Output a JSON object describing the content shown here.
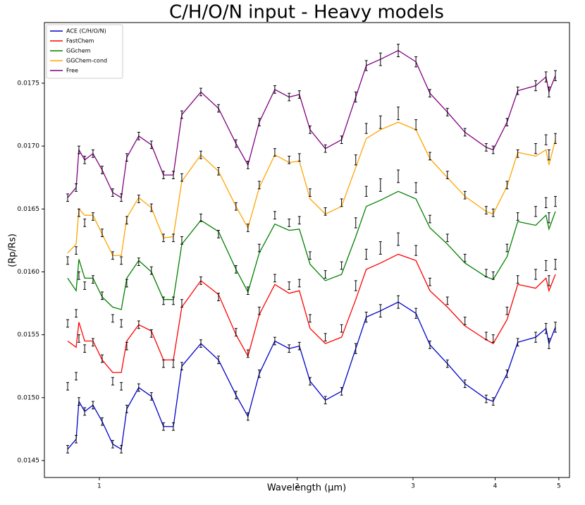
{
  "chart_data": {
    "type": "line",
    "title": "C/H/O/N input - Heavy models",
    "x_label": "Wavelength (μm)",
    "y_label": "(Rp/Rs)",
    "xscale": "log",
    "xlim": [
      0.825,
      5.19
    ],
    "ylim": [
      0.014365,
      0.017982
    ],
    "xticks": [
      1,
      2,
      3,
      4,
      5
    ],
    "yticks": [
      0.0145,
      {
        "value": 0.015,
        "label": "0.0150"
      },
      0.0155,
      {
        "value": 0.016,
        "label": "0.0160"
      },
      0.0165,
      {
        "value": 0.017,
        "label": "0.0170"
      },
      0.0175
    ],
    "legend": "upper left",
    "error_color": "#000000",
    "x": [
      0.895,
      0.922,
      0.931,
      0.95,
      0.978,
      1.01,
      1.048,
      1.08,
      1.101,
      1.148,
      1.2,
      1.252,
      1.296,
      1.335,
      1.427,
      1.518,
      1.614,
      1.683,
      1.751,
      1.849,
      1.944,
      2.015,
      2.092,
      2.207,
      2.336,
      2.455,
      2.547,
      2.677,
      2.849,
      3.031,
      3.183,
      3.384,
      3.599,
      3.877,
      3.973,
      4.17,
      4.33,
      4.61,
      4.78,
      4.83,
      4.94
    ],
    "obs_errors": [
      3e-05,
      3e-05,
      3e-05,
      3e-05,
      3e-05,
      3e-05,
      3e-05,
      3e-05,
      3e-05,
      3e-05,
      3e-05,
      3e-05,
      3e-05,
      3e-05,
      3e-05,
      3e-05,
      3e-05,
      3e-05,
      3e-05,
      3e-05,
      3e-05,
      3e-05,
      3e-05,
      3e-05,
      3e-05,
      4e-05,
      4e-05,
      5e-05,
      5e-05,
      4e-05,
      3e-05,
      3e-05,
      3e-05,
      3e-05,
      3e-05,
      3e-05,
      3e-05,
      4e-05,
      4e-05,
      4e-05,
      4e-05
    ],
    "series": [
      {
        "name": "ACE (C/H/O/N)",
        "color": "#0000cc",
        "values": [
          0.01459,
          0.01467,
          0.01497,
          0.01489,
          0.01494,
          0.01481,
          0.01463,
          0.01459,
          0.01491,
          0.01508,
          0.01501,
          0.01477,
          0.01477,
          0.01525,
          0.01543,
          0.0153,
          0.01502,
          0.01485,
          0.01519,
          0.01545,
          0.01539,
          0.01541,
          0.01513,
          0.01498,
          0.01505,
          0.01539,
          0.01564,
          0.01569,
          0.01576,
          0.01567,
          0.01542,
          0.01527,
          0.01511,
          0.01499,
          0.01497,
          0.01519,
          0.01544,
          0.01548,
          0.01555,
          0.01543,
          0.01556
        ],
        "obs": [
          0.01459,
          0.01467,
          0.01497,
          0.01489,
          0.01494,
          0.01481,
          0.01463,
          0.01459,
          0.01491,
          0.01508,
          0.01501,
          0.01477,
          0.01477,
          0.01525,
          0.01543,
          0.0153,
          0.01502,
          0.01485,
          0.01519,
          0.01545,
          0.01539,
          0.01541,
          0.01513,
          0.01498,
          0.01505,
          0.01539,
          0.01564,
          0.01569,
          0.01576,
          0.01567,
          0.01542,
          0.01527,
          0.01511,
          0.01499,
          0.01497,
          0.01519,
          0.01544,
          0.01548,
          0.01555,
          0.01543,
          0.01556
        ]
      },
      {
        "name": "FastChem",
        "color": "#ff0000",
        "values": [
          0.01545,
          0.0154,
          0.0156,
          0.01545,
          0.01545,
          0.0153,
          0.0152,
          0.0152,
          0.01545,
          0.01558,
          0.01553,
          0.0153,
          0.0153,
          0.01572,
          0.01593,
          0.01582,
          0.0155,
          0.01533,
          0.01566,
          0.0159,
          0.01583,
          0.01585,
          0.01555,
          0.01543,
          0.01548,
          0.01578,
          0.01602,
          0.01607,
          0.01614,
          0.01609,
          0.01585,
          0.01572,
          0.01557,
          0.01546,
          0.01543,
          0.01562,
          0.0159,
          0.01587,
          0.01595,
          0.01585,
          0.01598
        ],
        "obs": [
          0.01509,
          0.01517,
          0.01547,
          0.01539,
          0.01544,
          0.01531,
          0.01513,
          0.01509,
          0.01541,
          0.01558,
          0.01551,
          0.01527,
          0.01527,
          0.01575,
          0.01593,
          0.0158,
          0.01552,
          0.01535,
          0.01569,
          0.01595,
          0.01589,
          0.01591,
          0.01563,
          0.01548,
          0.01555,
          0.01589,
          0.01614,
          0.01619,
          0.01626,
          0.01617,
          0.01592,
          0.01577,
          0.01561,
          0.01549,
          0.01547,
          0.01569,
          0.01594,
          0.01598,
          0.01605,
          0.01593,
          0.01606
        ]
      },
      {
        "name": "GGchem",
        "color": "#008000",
        "values": [
          0.01595,
          0.01585,
          0.0161,
          0.01595,
          0.01595,
          0.0158,
          0.01572,
          0.0157,
          0.01595,
          0.01609,
          0.016,
          0.01578,
          0.01578,
          0.01622,
          0.01641,
          0.01632,
          0.01602,
          0.01584,
          0.01615,
          0.01638,
          0.01633,
          0.01634,
          0.01606,
          0.01593,
          0.01598,
          0.01628,
          0.01652,
          0.01657,
          0.01664,
          0.01658,
          0.01635,
          0.01622,
          0.01607,
          0.01596,
          0.01594,
          0.01612,
          0.0164,
          0.01637,
          0.01645,
          0.01634,
          0.01648
        ],
        "obs": [
          0.01559,
          0.01567,
          0.01597,
          0.01589,
          0.01594,
          0.01581,
          0.01563,
          0.01559,
          0.01591,
          0.01608,
          0.01601,
          0.01577,
          0.01577,
          0.01625,
          0.01643,
          0.0163,
          0.01602,
          0.01585,
          0.01619,
          0.01645,
          0.01639,
          0.01641,
          0.01613,
          0.01598,
          0.01605,
          0.01639,
          0.01664,
          0.01669,
          0.01676,
          0.01667,
          0.01642,
          0.01627,
          0.01611,
          0.01599,
          0.01597,
          0.01619,
          0.01644,
          0.01648,
          0.01655,
          0.01643,
          0.01656
        ]
      },
      {
        "name": "GGChem-cond",
        "color": "#ffa500",
        "values": [
          0.01615,
          0.01622,
          0.0165,
          0.01645,
          0.01645,
          0.0163,
          0.01613,
          0.01613,
          0.01643,
          0.01659,
          0.01651,
          0.01627,
          0.01628,
          0.01672,
          0.01693,
          0.0168,
          0.01652,
          0.01635,
          0.01667,
          0.01693,
          0.01687,
          0.01688,
          0.01658,
          0.01646,
          0.01652,
          0.01683,
          0.01706,
          0.01713,
          0.01719,
          0.01713,
          0.0169,
          0.01675,
          0.0166,
          0.01648,
          0.01646,
          0.01668,
          0.01695,
          0.01692,
          0.01697,
          0.01685,
          0.01705
        ],
        "obs": [
          0.01609,
          0.01617,
          0.01647,
          0.01639,
          0.01644,
          0.01631,
          0.01613,
          0.01609,
          0.01641,
          0.01658,
          0.01651,
          0.01627,
          0.01627,
          0.01675,
          0.01693,
          0.0168,
          0.01652,
          0.01635,
          0.01669,
          0.01695,
          0.01689,
          0.01691,
          0.01663,
          0.01648,
          0.01655,
          0.01689,
          0.01714,
          0.01719,
          0.01726,
          0.01717,
          0.01692,
          0.01677,
          0.01661,
          0.01649,
          0.01647,
          0.01669,
          0.01694,
          0.01698,
          0.01705,
          0.01693,
          0.01706
        ]
      },
      {
        "name": "Free",
        "color": "#800080",
        "values": [
          0.01659,
          0.01667,
          0.01697,
          0.01689,
          0.01694,
          0.01681,
          0.01663,
          0.01659,
          0.01691,
          0.01708,
          0.01701,
          0.01677,
          0.01677,
          0.01725,
          0.01743,
          0.0173,
          0.01702,
          0.01685,
          0.01719,
          0.01745,
          0.01739,
          0.01741,
          0.01713,
          0.01698,
          0.01705,
          0.01739,
          0.01764,
          0.01769,
          0.01776,
          0.01767,
          0.01742,
          0.01727,
          0.01711,
          0.01699,
          0.01697,
          0.01719,
          0.01744,
          0.01748,
          0.01755,
          0.01743,
          0.01756
        ],
        "obs": [
          0.01659,
          0.01667,
          0.01697,
          0.01689,
          0.01694,
          0.01681,
          0.01663,
          0.01659,
          0.01691,
          0.01708,
          0.01701,
          0.01677,
          0.01677,
          0.01725,
          0.01743,
          0.0173,
          0.01702,
          0.01685,
          0.01719,
          0.01745,
          0.01739,
          0.01741,
          0.01713,
          0.01698,
          0.01705,
          0.01739,
          0.01764,
          0.01769,
          0.01776,
          0.01767,
          0.01742,
          0.01727,
          0.01711,
          0.01699,
          0.01697,
          0.01719,
          0.01744,
          0.01748,
          0.01755,
          0.01743,
          0.01756
        ]
      }
    ]
  }
}
